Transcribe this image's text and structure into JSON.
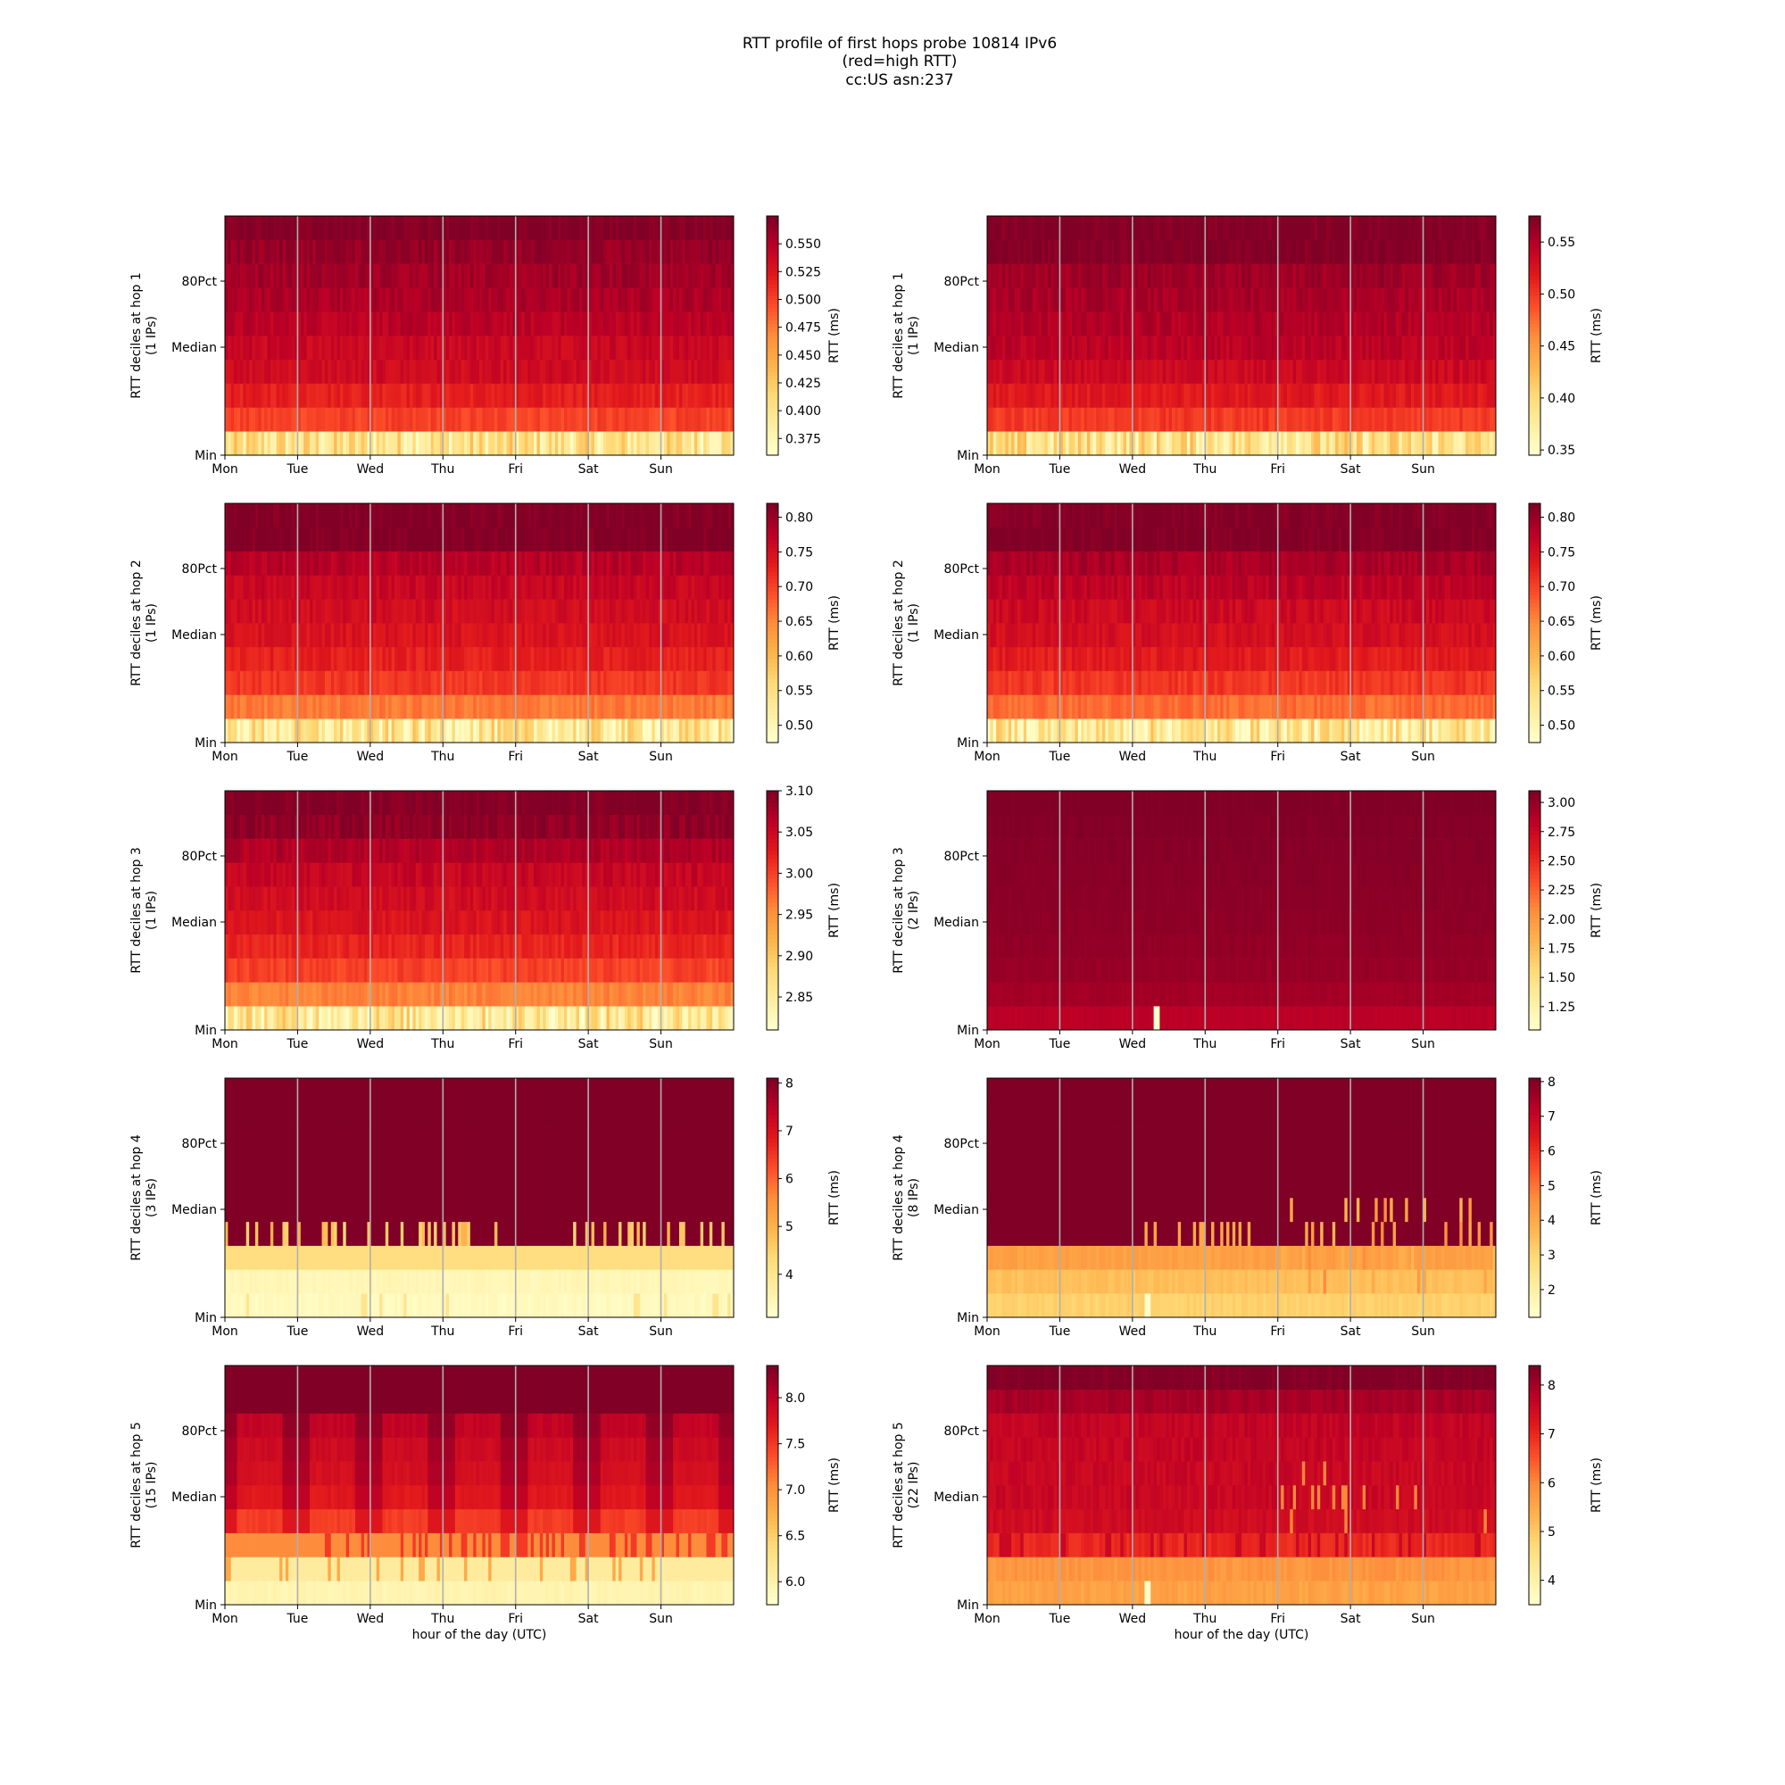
{
  "title_lines": [
    "RTT profile of first hops probe 10814 IPv6",
    "(red=high RTT)",
    "cc:US asn:237"
  ],
  "x_tick_labels": [
    "Mon",
    "Tue",
    "Wed",
    "Thu",
    "Fri",
    "Sat",
    "Sun"
  ],
  "y_tick_labels": [
    "80Pct",
    "Median",
    "Min"
  ],
  "x_axis_label": "hour of the day (UTC)",
  "colorbar_label": "RTT (ms)",
  "colormap": [
    "#ffffcc",
    "#ffeda0",
    "#fed976",
    "#feb24c",
    "#fd8d3c",
    "#fc4e2a",
    "#e31a1c",
    "#bd0026",
    "#800026"
  ],
  "chart_data": [
    {
      "type": "heatmap",
      "ylabel": "RTT deciles at hop 1",
      "ylabel2": "(1 IPs)",
      "xlabel": "",
      "cbar_ticks": [
        "0.375",
        "0.400",
        "0.425",
        "0.450",
        "0.475",
        "0.500",
        "0.525",
        "0.550"
      ],
      "cbar_range": [
        0.36,
        0.575
      ],
      "cbar_tick_values": [
        0.375,
        0.4,
        0.425,
        0.45,
        0.475,
        0.5,
        0.525,
        0.55
      ],
      "row_levels": [
        0.4,
        0.5,
        0.52,
        0.535,
        0.54,
        0.548,
        0.555,
        0.56,
        0.565,
        0.575
      ],
      "pattern": "stable"
    },
    {
      "type": "heatmap",
      "ylabel": "RTT deciles at hop 1",
      "ylabel2": "(1 IPs)",
      "xlabel": "",
      "cbar_ticks": [
        "0.35",
        "0.40",
        "0.45",
        "0.50",
        "0.55"
      ],
      "cbar_range": [
        0.345,
        0.575
      ],
      "cbar_tick_values": [
        0.35,
        0.4,
        0.45,
        0.5,
        0.55
      ],
      "row_levels": [
        0.39,
        0.5,
        0.52,
        0.535,
        0.545,
        0.55,
        0.555,
        0.56,
        0.575,
        0.575
      ],
      "pattern": "stable"
    },
    {
      "type": "heatmap",
      "ylabel": "RTT deciles at hop 2",
      "ylabel2": "(1 IPs)",
      "xlabel": "",
      "cbar_ticks": [
        "0.50",
        "0.55",
        "0.60",
        "0.65",
        "0.70",
        "0.75",
        "0.80"
      ],
      "cbar_range": [
        0.475,
        0.82
      ],
      "cbar_tick_values": [
        0.5,
        0.55,
        0.6,
        0.65,
        0.7,
        0.75,
        0.8
      ],
      "row_levels": [
        0.53,
        0.66,
        0.71,
        0.73,
        0.745,
        0.755,
        0.765,
        0.78,
        0.82,
        0.82
      ],
      "pattern": "stable"
    },
    {
      "type": "heatmap",
      "ylabel": "RTT deciles at hop 2",
      "ylabel2": "(1 IPs)",
      "xlabel": "",
      "cbar_ticks": [
        "0.50",
        "0.55",
        "0.60",
        "0.65",
        "0.70",
        "0.75",
        "0.80"
      ],
      "cbar_range": [
        0.475,
        0.82
      ],
      "cbar_tick_values": [
        0.5,
        0.55,
        0.6,
        0.65,
        0.7,
        0.75,
        0.8
      ],
      "row_levels": [
        0.53,
        0.67,
        0.71,
        0.735,
        0.75,
        0.76,
        0.775,
        0.79,
        0.82,
        0.82
      ],
      "pattern": "stable"
    },
    {
      "type": "heatmap",
      "ylabel": "RTT deciles at hop 3",
      "ylabel2": "(1 IPs)",
      "xlabel": "",
      "cbar_ticks": [
        "2.85",
        "2.90",
        "2.95",
        "3.00",
        "3.05",
        "3.10"
      ],
      "cbar_range": [
        2.81,
        3.1
      ],
      "cbar_tick_values": [
        2.85,
        2.9,
        2.95,
        3.0,
        3.05,
        3.1
      ],
      "row_levels": [
        2.86,
        2.96,
        3.0,
        3.02,
        3.035,
        3.045,
        3.055,
        3.07,
        3.09,
        3.1
      ],
      "pattern": "stable"
    },
    {
      "type": "heatmap",
      "ylabel": "RTT deciles at hop 3",
      "ylabel2": "(2 IPs)",
      "xlabel": "",
      "cbar_ticks": [
        "1.25",
        "1.50",
        "1.75",
        "2.00",
        "2.25",
        "2.50",
        "2.75",
        "3.00"
      ],
      "cbar_range": [
        1.05,
        3.1
      ],
      "cbar_tick_values": [
        1.25,
        1.5,
        1.75,
        2.0,
        2.25,
        2.5,
        2.75,
        3.0
      ],
      "row_levels": [
        2.85,
        2.95,
        3.0,
        3.02,
        3.04,
        3.05,
        3.06,
        3.07,
        3.08,
        3.1
      ],
      "pattern": "hop3b"
    },
    {
      "type": "heatmap",
      "ylabel": "RTT deciles at hop 4",
      "ylabel2": "(3 IPs)",
      "xlabel": "",
      "cbar_ticks": [
        "4",
        "5",
        "6",
        "7",
        "8"
      ],
      "cbar_range": [
        3.1,
        8.1
      ],
      "cbar_tick_values": [
        4,
        5,
        6,
        7,
        8
      ],
      "row_levels": [
        3.3,
        3.4,
        4.2,
        8.1,
        8.1,
        8.1,
        8.1,
        8.1,
        8.1,
        8.1
      ],
      "pattern": "hop4a"
    },
    {
      "type": "heatmap",
      "ylabel": "RTT deciles at hop 4",
      "ylabel2": "(8 IPs)",
      "xlabel": "",
      "cbar_ticks": [
        "2",
        "3",
        "4",
        "5",
        "6",
        "7",
        "8"
      ],
      "cbar_range": [
        1.2,
        8.1
      ],
      "cbar_tick_values": [
        2,
        3,
        4,
        5,
        6,
        7,
        8
      ],
      "row_levels": [
        3.1,
        3.5,
        4.2,
        8.1,
        8.1,
        8.1,
        8.1,
        8.1,
        8.1,
        8.1
      ],
      "pattern": "hop4b"
    },
    {
      "type": "heatmap",
      "ylabel": "RTT deciles at hop 5",
      "ylabel2": "(15 IPs)",
      "xlabel": "hour of the day (UTC)",
      "cbar_ticks": [
        "6.0",
        "6.5",
        "7.0",
        "7.5",
        "8.0"
      ],
      "cbar_range": [
        5.75,
        8.35
      ],
      "cbar_tick_values": [
        6.0,
        6.5,
        7.0,
        7.5,
        8.0
      ],
      "row_levels": [
        5.95,
        6.1,
        7.05,
        7.6,
        7.85,
        7.95,
        8.0,
        8.1,
        8.35,
        8.35
      ],
      "pattern": "hop5a"
    },
    {
      "type": "heatmap",
      "ylabel": "RTT deciles at hop 5",
      "ylabel2": "(22 IPs)",
      "xlabel": "hour of the day (UTC)",
      "cbar_ticks": [
        "4",
        "5",
        "6",
        "7",
        "8"
      ],
      "cbar_range": [
        3.5,
        8.4
      ],
      "cbar_tick_values": [
        4,
        5,
        6,
        7,
        8
      ],
      "row_levels": [
        5.6,
        5.8,
        7.0,
        7.5,
        7.6,
        7.6,
        7.65,
        7.7,
        8.0,
        8.4
      ],
      "pattern": "hop5b"
    }
  ]
}
